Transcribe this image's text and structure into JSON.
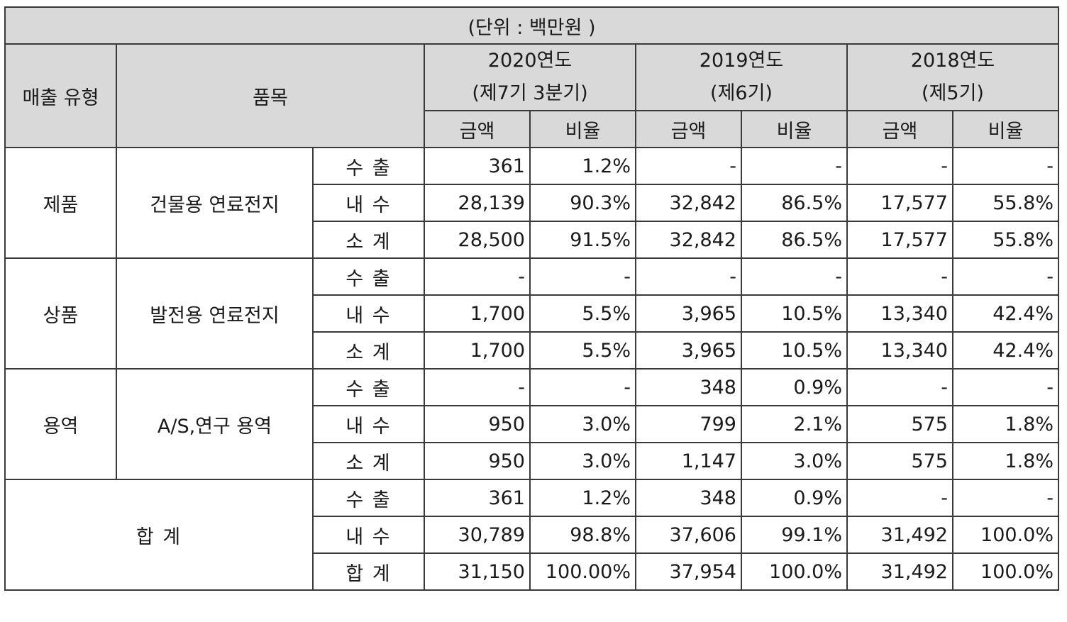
{
  "unit_note": "(단위 : 백만원 )",
  "headers": {
    "sales_type": "매출 유형",
    "item": "품목",
    "years": [
      {
        "year": "2020연도",
        "term": "(제7기 3분기)"
      },
      {
        "year": "2019연도",
        "term": "(제6기)"
      },
      {
        "year": "2018연도",
        "term": "(제5기)"
      }
    ],
    "amount": "금액",
    "ratio": "비율"
  },
  "groups": [
    {
      "type": "제품",
      "item": "건물용 연료전지",
      "rows": [
        {
          "sub": "수 출",
          "cells": [
            "361",
            "1.2%",
            "-",
            "-",
            "-",
            "-"
          ]
        },
        {
          "sub": "내 수",
          "cells": [
            "28,139",
            "90.3%",
            "32,842",
            "86.5%",
            "17,577",
            "55.8%"
          ]
        },
        {
          "sub": "소 계",
          "cells": [
            "28,500",
            "91.5%",
            "32,842",
            "86.5%",
            "17,577",
            "55.8%"
          ]
        }
      ]
    },
    {
      "type": "상품",
      "item": "발전용 연료전지",
      "rows": [
        {
          "sub": "수 출",
          "cells": [
            "-",
            "-",
            "-",
            "-",
            "-",
            "-"
          ]
        },
        {
          "sub": "내 수",
          "cells": [
            "1,700",
            "5.5%",
            "3,965",
            "10.5%",
            "13,340",
            "42.4%"
          ]
        },
        {
          "sub": "소 계",
          "cells": [
            "1,700",
            "5.5%",
            "3,965",
            "10.5%",
            "13,340",
            "42.4%"
          ]
        }
      ]
    },
    {
      "type": "용역",
      "item": "A/S,연구 용역",
      "rows": [
        {
          "sub": "수 출",
          "cells": [
            "-",
            "-",
            "348",
            "0.9%",
            "-",
            "-"
          ]
        },
        {
          "sub": "내 수",
          "cells": [
            "950",
            "3.0%",
            "799",
            "2.1%",
            "575",
            "1.8%"
          ]
        },
        {
          "sub": "소 계",
          "cells": [
            "950",
            "3.0%",
            "1,147",
            "3.0%",
            "575",
            "1.8%"
          ]
        }
      ]
    }
  ],
  "total": {
    "label": "합 계",
    "rows": [
      {
        "sub": "수 출",
        "cells": [
          "361",
          "1.2%",
          "348",
          "0.9%",
          "-",
          "-"
        ]
      },
      {
        "sub": "내 수",
        "cells": [
          "30,789",
          "98.8%",
          "37,606",
          "99.1%",
          "31,492",
          "100.0%"
        ]
      },
      {
        "sub": "합 계",
        "cells": [
          "31,150",
          "100.00%",
          "37,954",
          "100.0%",
          "31,492",
          "100.0%"
        ]
      }
    ]
  }
}
